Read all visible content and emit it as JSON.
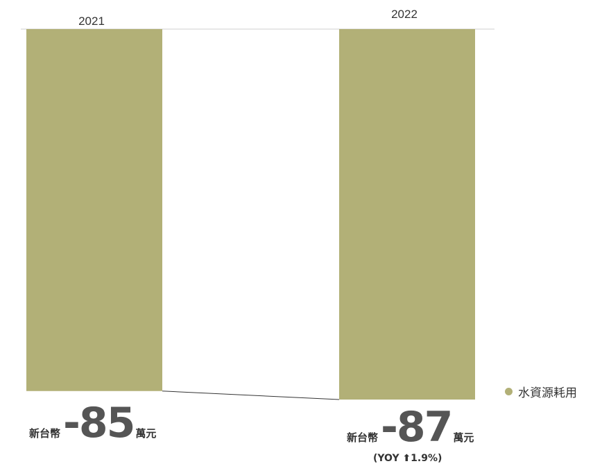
{
  "chart_data": {
    "type": "bar",
    "categories": [
      "2021",
      "2022"
    ],
    "series": [
      {
        "name": "水資源耗用",
        "values": [
          -85,
          -87
        ],
        "color": "#b2b077"
      }
    ],
    "value_labels": [
      {
        "prefix": "新台幣",
        "number": "-85",
        "unit": "萬元"
      },
      {
        "prefix": "新台幣",
        "number": "-87",
        "unit": "萬元"
      }
    ],
    "yoy_label": "(YOY ⬆1.9%)",
    "ylim": [
      -90,
      0
    ],
    "grid": false,
    "legend_position": "right"
  }
}
